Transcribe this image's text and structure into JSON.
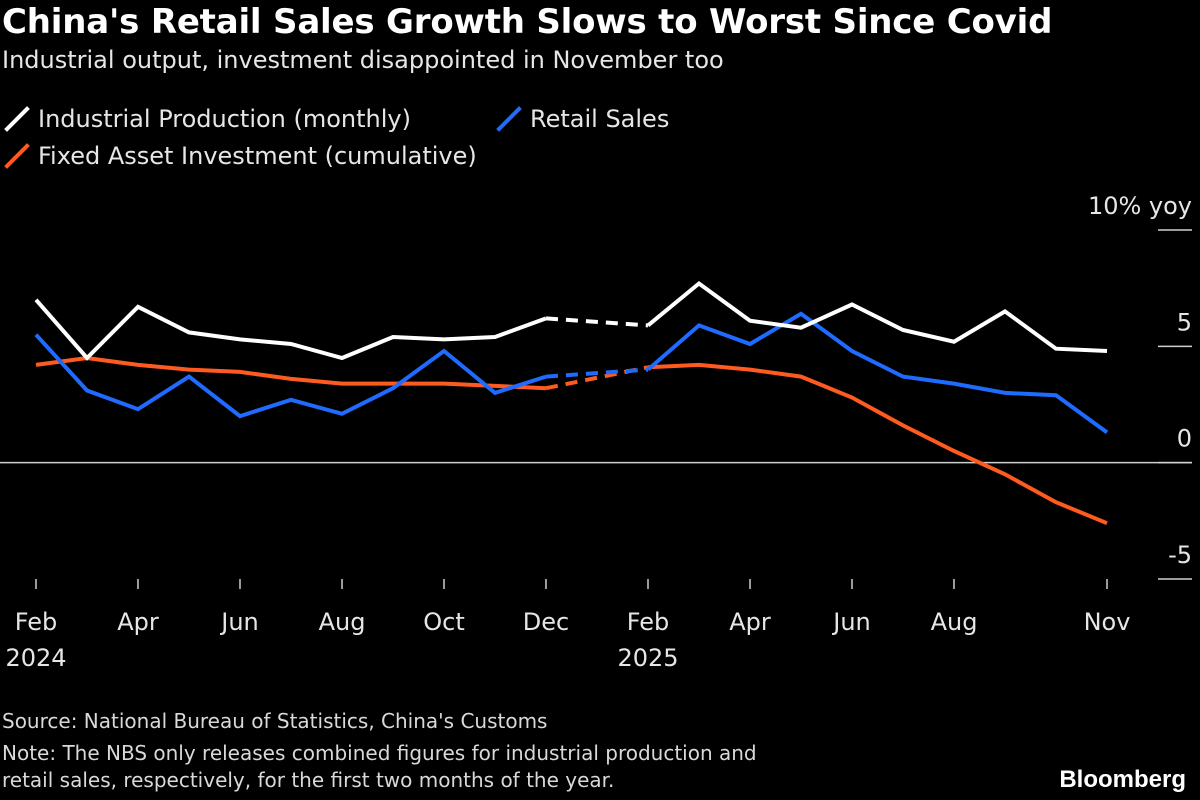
{
  "title": "China's Retail Sales Growth Slows to Worst Since Covid",
  "subtitle": "Industrial output, investment disappointed in November too",
  "legend": [
    {
      "label": "Industrial Production (monthly)",
      "color": "#ffffff"
    },
    {
      "label": "Retail Sales",
      "color": "#1f6bff"
    },
    {
      "label": "Fixed Asset Investment (cumulative)",
      "color": "#ff5a1f"
    }
  ],
  "footer": {
    "source": "Source: National Bureau of Statistics, China's Customs",
    "note_line1": "Note: The NBS only releases combined figures for industrial production and",
    "note_line2": "retail sales, respectively, for the first two months of the year."
  },
  "brand": "Bloomberg",
  "chart_data": {
    "type": "line",
    "y_unit_label": "10% yoy",
    "ylim": [
      -5,
      10
    ],
    "y_ticks": [
      {
        "value": 10,
        "label": "10% yoy"
      },
      {
        "value": 5,
        "label": "5"
      },
      {
        "value": 0,
        "label": "0"
      },
      {
        "value": -5,
        "label": "-5"
      }
    ],
    "x": [
      "2024-02",
      "2024-03",
      "2024-04",
      "2024-05",
      "2024-06",
      "2024-07",
      "2024-08",
      "2024-09",
      "2024-10",
      "2024-11",
      "2024-12",
      "2025-02",
      "2025-03",
      "2025-04",
      "2025-05",
      "2025-06",
      "2025-07",
      "2025-08",
      "2025-09",
      "2025-10",
      "2025-11"
    ],
    "x_tick_labels": [
      {
        "x": "2024-02",
        "label": "Feb",
        "sublabel": "2024"
      },
      {
        "x": "2024-04",
        "label": "Apr",
        "sublabel": ""
      },
      {
        "x": "2024-06",
        "label": "Jun",
        "sublabel": ""
      },
      {
        "x": "2024-08",
        "label": "Aug",
        "sublabel": ""
      },
      {
        "x": "2024-10",
        "label": "Oct",
        "sublabel": ""
      },
      {
        "x": "2024-12",
        "label": "Dec",
        "sublabel": ""
      },
      {
        "x": "2025-02",
        "label": "Feb",
        "sublabel": "2025"
      },
      {
        "x": "2025-04",
        "label": "Apr",
        "sublabel": ""
      },
      {
        "x": "2025-06",
        "label": "Jun",
        "sublabel": ""
      },
      {
        "x": "2025-08",
        "label": "Aug",
        "sublabel": ""
      },
      {
        "x": "2025-11",
        "label": "Nov",
        "sublabel": ""
      }
    ],
    "dashed_between": [
      "2024-12",
      "2025-02"
    ],
    "series": [
      {
        "name": "Industrial Production (monthly)",
        "color": "#ffffff",
        "values": [
          7.0,
          4.5,
          6.7,
          5.6,
          5.3,
          5.1,
          4.5,
          5.4,
          5.3,
          5.4,
          6.2,
          5.9,
          7.7,
          6.1,
          5.8,
          6.8,
          5.7,
          5.2,
          6.5,
          4.9,
          4.8
        ]
      },
      {
        "name": "Retail Sales",
        "color": "#1f6bff",
        "values": [
          5.5,
          3.1,
          2.3,
          3.7,
          2.0,
          2.7,
          2.1,
          3.2,
          4.8,
          3.0,
          3.7,
          4.0,
          5.9,
          5.1,
          6.4,
          4.8,
          3.7,
          3.4,
          3.0,
          2.9,
          1.3
        ]
      },
      {
        "name": "Fixed Asset Investment (cumulative)",
        "color": "#ff5a1f",
        "values": [
          4.2,
          4.5,
          4.2,
          4.0,
          3.9,
          3.6,
          3.4,
          3.4,
          3.4,
          3.3,
          3.2,
          4.1,
          4.2,
          4.0,
          3.7,
          2.8,
          1.6,
          0.5,
          -0.5,
          -1.7,
          -2.6
        ]
      }
    ]
  }
}
